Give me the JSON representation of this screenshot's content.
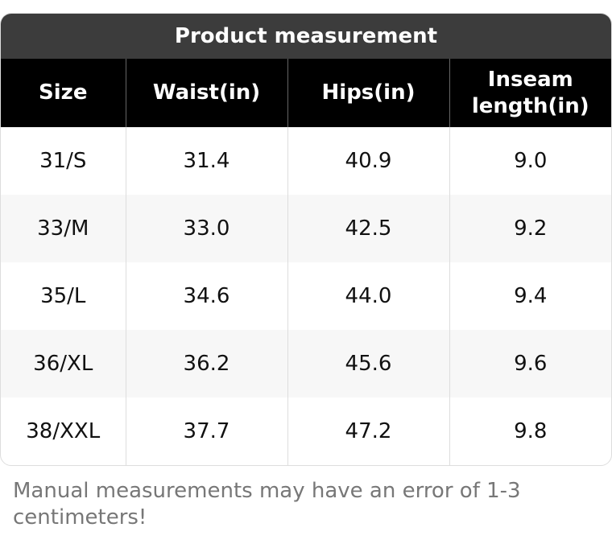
{
  "title": "Product measurement",
  "table": {
    "header": [
      "Size",
      "Waist(in)",
      "Hips(in)",
      "Inseam length(in)"
    ],
    "rows": [
      [
        "31/S",
        "31.4",
        "40.9",
        "9.0"
      ],
      [
        "33/M",
        "33.0",
        "42.5",
        "9.2"
      ],
      [
        "35/L",
        "34.6",
        "44.0",
        "9.4"
      ],
      [
        "36/XL",
        "36.2",
        "45.6",
        "9.6"
      ],
      [
        "38/XXL",
        "37.7",
        "47.2",
        "9.8"
      ]
    ]
  },
  "note": "Manual measurements may have an error of 1-3 centimeters!"
}
